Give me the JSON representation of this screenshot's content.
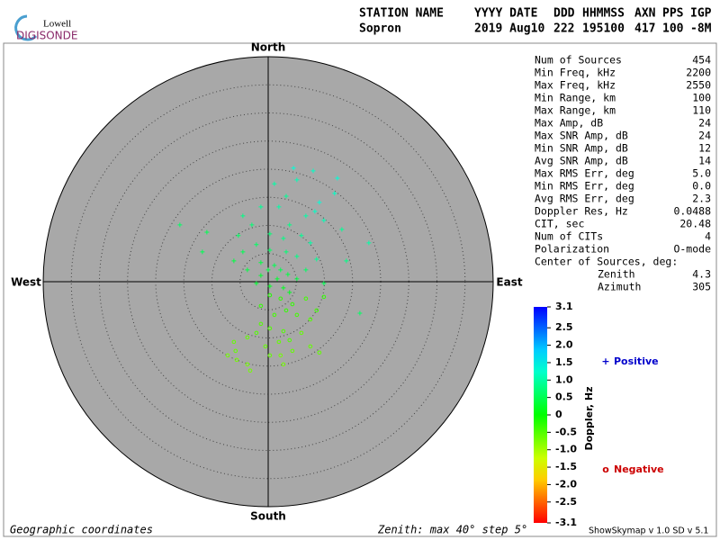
{
  "chart_data": {
    "type": "skymap",
    "logo": {
      "top": "Lowell",
      "bottom": "DIGISONDE"
    },
    "header": [
      {
        "label": "STATION NAME",
        "value": "Sopron"
      },
      {
        "label": "YYYY DATE",
        "value": "2019 Aug10"
      },
      {
        "label": "DDD",
        "value": "222"
      },
      {
        "label": "HHMMSS",
        "value": "195100"
      },
      {
        "label": "AXN",
        "value": "417"
      },
      {
        "label": "PPS",
        "value": "100"
      },
      {
        "label": "IGP",
        "value": "-8M"
      }
    ],
    "directions": {
      "north": "North",
      "south": "South",
      "east": "East",
      "west": "West"
    },
    "zlim": [
      0,
      40
    ],
    "zticks": [
      5,
      10,
      15,
      20,
      25,
      30,
      35,
      40
    ],
    "stats": [
      {
        "label": "Num of Sources",
        "value": "454"
      },
      {
        "label": "Min Freq, kHz",
        "value": "2200"
      },
      {
        "label": "Max Freq, kHz",
        "value": "2550"
      },
      {
        "label": "Min Range, km",
        "value": "100"
      },
      {
        "label": "Max Range, km",
        "value": "110"
      },
      {
        "label": "Max Amp, dB",
        "value": "24"
      },
      {
        "label": "Max SNR Amp, dB",
        "value": "24"
      },
      {
        "label": "Min SNR Amp, dB",
        "value": "12"
      },
      {
        "label": "Avg SNR Amp, dB",
        "value": "14"
      },
      {
        "label": "Max RMS Err, deg",
        "value": "5.0"
      },
      {
        "label": "Min RMS Err, deg",
        "value": "0.0"
      },
      {
        "label": "Avg RMS Err, deg",
        "value": "2.3"
      },
      {
        "label": "Doppler Res, Hz",
        "value": "0.0488"
      },
      {
        "label": "CIT, sec",
        "value": "20.48"
      },
      {
        "label": "Num of CITs",
        "value": "4"
      },
      {
        "label": "Polarization",
        "value": "O-mode"
      }
    ],
    "center_title": "Center of Sources, deg:",
    "center": [
      {
        "label": "Zenith",
        "value": "4.3"
      },
      {
        "label": "Azimuth",
        "value": "305"
      }
    ],
    "colorbar": {
      "label": "Doppler, Hz",
      "lim": [
        -3.1,
        3.1
      ],
      "ticks": [
        3.1,
        2.5,
        {
          "value": 2,
          "label": "2.0"
        },
        1.5,
        {
          "value": 1,
          "label": "1.0"
        },
        0.5,
        0,
        -0.5,
        {
          "value": -1,
          "label": "-1.0"
        },
        -1.5,
        {
          "value": -2,
          "label": "-2.0"
        },
        -2.5,
        -3.1
      ]
    },
    "series": [
      {
        "name": "Positive",
        "symbol": "+",
        "color": "#0000cc",
        "x": [
          4.5,
          8.0,
          5.1,
          12.3,
          1.1,
          11.8,
          3.2,
          9.1,
          8.3,
          6.7,
          9.9,
          13.1,
          17.9,
          -15.7,
          -10.9,
          -11.7,
          -4.5,
          -2.9,
          -5.3,
          -1.3,
          1.9,
          3.8,
          0.3,
          2.7,
          5.9,
          7.5,
          -2.1,
          -4.5,
          -6.1,
          0.3,
          3.2,
          5.1,
          8.6,
          13.9,
          -1.3,
          1.1,
          2.2,
          0.0,
          3.5,
          -1.3,
          6.7,
          -3.7,
          1.6,
          0.3,
          2.7,
          5.1,
          -2.1,
          9.9,
          16.3,
          3.8
        ],
        "y": [
          20.2,
          19.7,
          18.1,
          18.4,
          17.4,
          15.7,
          15.2,
          14.1,
          12.5,
          11.7,
          10.9,
          9.3,
          6.9,
          10.1,
          8.8,
          5.3,
          11.7,
          10.1,
          8.2,
          13.3,
          13.3,
          10.1,
          8.5,
          7.7,
          8.2,
          6.9,
          6.6,
          5.3,
          3.7,
          5.6,
          5.3,
          4.5,
          4.0,
          3.7,
          3.4,
          2.9,
          2.1,
          2.1,
          1.3,
          1.1,
          2.1,
          2.1,
          0.5,
          -0.8,
          -1.1,
          0.5,
          -0.3,
          -0.3,
          -5.6,
          -1.9
        ],
        "values": [
          1.3,
          1.2,
          1.1,
          1.3,
          1.0,
          1.2,
          0.9,
          1.3,
          1.2,
          1.0,
          1.1,
          0.9,
          1.0,
          0.6,
          0.5,
          0.5,
          0.8,
          0.7,
          0.6,
          0.9,
          1.0,
          0.8,
          0.7,
          0.8,
          0.9,
          1.0,
          0.6,
          0.5,
          0.4,
          0.6,
          0.7,
          0.8,
          0.9,
          0.8,
          0.4,
          0.5,
          0.5,
          0.4,
          0.4,
          0.3,
          0.6,
          0.4,
          0.3,
          0.2,
          0.2,
          0.4,
          0.3,
          0.5,
          0.6,
          0.2
        ]
      },
      {
        "name": "Negative",
        "symbol": "o",
        "color": "#cc0000",
        "x": [
          0.3,
          2.2,
          4.3,
          6.7,
          8.6,
          7.5,
          5.1,
          3.2,
          1.1,
          -1.3,
          0.3,
          2.7,
          5.9,
          3.8,
          1.9,
          -0.5,
          4.3,
          2.2,
          2.7,
          0.3,
          9.1,
          -2.1,
          -3.7,
          -6.1,
          -7.2,
          -5.6,
          -3.7,
          -3.2,
          -5.8,
          7.5,
          9.9,
          -1.3
        ],
        "y": [
          -2.4,
          -3.0,
          -4.0,
          -3.0,
          -5.1,
          -6.7,
          -5.9,
          -5.1,
          -5.9,
          -7.5,
          -8.3,
          -8.8,
          -9.1,
          -10.4,
          -10.7,
          -11.5,
          -12.3,
          -13.1,
          -14.7,
          -13.1,
          -12.6,
          -9.1,
          -9.9,
          -10.7,
          -13.1,
          -13.9,
          -14.7,
          -15.8,
          -12.3,
          -11.5,
          -2.7,
          -4.3
        ],
        "values": [
          -0.2,
          -0.3,
          -0.3,
          -0.4,
          -0.4,
          -0.5,
          -0.4,
          -0.3,
          -0.4,
          -0.5,
          -0.5,
          -0.5,
          -0.6,
          -0.5,
          -0.6,
          -0.6,
          -0.6,
          -0.7,
          -0.7,
          -0.6,
          -0.6,
          -0.5,
          -0.6,
          -0.6,
          -0.7,
          -0.7,
          -0.7,
          -0.7,
          -0.6,
          -0.6,
          -0.3,
          -0.3
        ]
      }
    ],
    "footer": {
      "left": "Geographic coordinates",
      "middle": "Zenith: max 40°  step 5°",
      "right": "ShowSkymap v 1.0  SD v 5.1"
    }
  }
}
